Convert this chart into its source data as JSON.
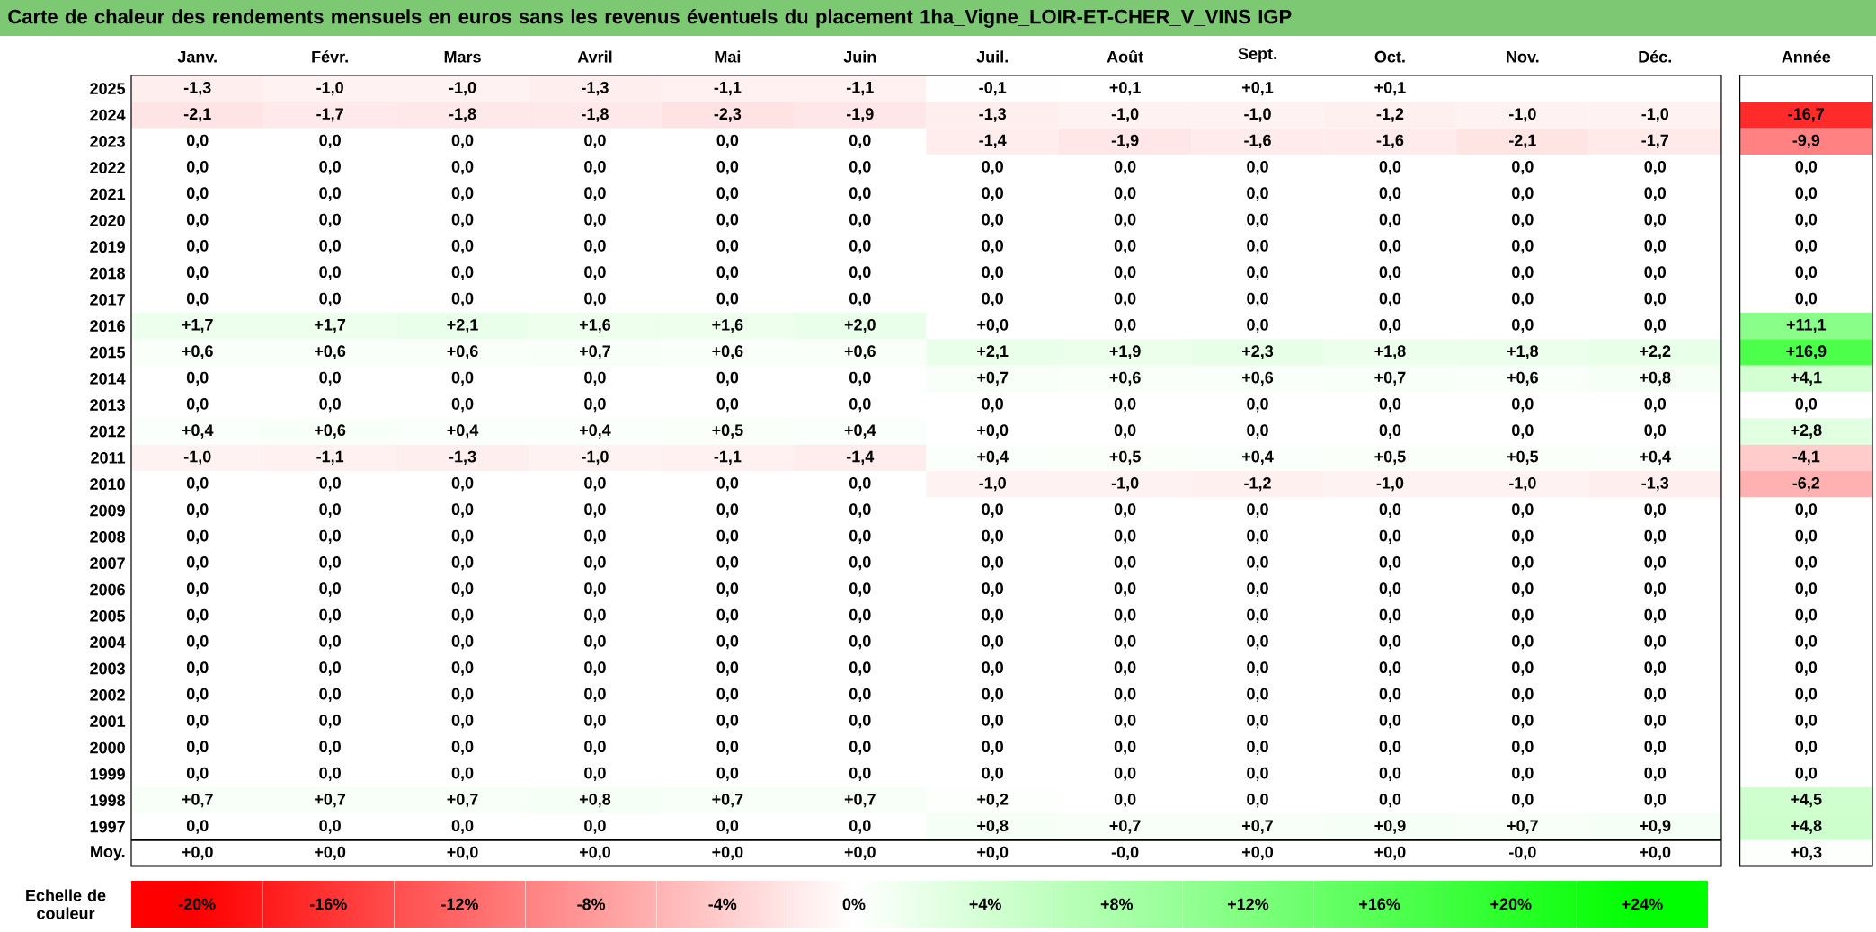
{
  "chart_data": [
    {
      "type": "heatmap",
      "title": "Carte de chaleur des rendements mensuels en euros sans les revenus éventuels du placement 1ha_Vigne_LOIR-ET-CHER_V_VINS IGP",
      "categories": [
        "Janv.",
        "Févr.",
        "Mars",
        "Avril",
        "Mai",
        "Juin",
        "Juil.",
        "Août",
        "Sept.",
        "Oct.",
        "Nov.",
        "Déc.",
        "Année"
      ],
      "y_categories": [
        "2025",
        "2024",
        "2023",
        "2022",
        "2021",
        "2020",
        "2019",
        "2018",
        "2017",
        "2016",
        "2015",
        "2014",
        "2013",
        "2012",
        "2011",
        "2010",
        "2009",
        "2008",
        "2007",
        "2006",
        "2005",
        "2004",
        "2003",
        "2002",
        "2001",
        "2000",
        "1999",
        "1998",
        "1997",
        "Moy."
      ],
      "cells": [
        [
          -1.3,
          -1.0,
          -1.0,
          -1.3,
          -1.1,
          -1.1,
          -0.1,
          0.1,
          0.1,
          0.1,
          null,
          null,
          null
        ],
        [
          -2.1,
          -1.7,
          -1.8,
          -1.8,
          -2.3,
          -1.9,
          -1.3,
          -1.0,
          -1.0,
          -1.2,
          -1.0,
          -1.0,
          -16.7
        ],
        [
          0,
          0,
          0,
          0,
          0,
          0,
          -1.4,
          -1.9,
          -1.6,
          -1.6,
          -2.1,
          -1.7,
          -9.9
        ],
        [
          0,
          0,
          0,
          0,
          0,
          0,
          0,
          0,
          0,
          0,
          0,
          0,
          0
        ],
        [
          0,
          0,
          0,
          0,
          0,
          0,
          0,
          0,
          0,
          0,
          0,
          0,
          0
        ],
        [
          0,
          0,
          0,
          0,
          0,
          0,
          0,
          0,
          0,
          0,
          0,
          0,
          0
        ],
        [
          0,
          0,
          0,
          0,
          0,
          0,
          0,
          0,
          0,
          0,
          0,
          0,
          0
        ],
        [
          0,
          0,
          0,
          0,
          0,
          0,
          0,
          0,
          0,
          0,
          0,
          0,
          0
        ],
        [
          0,
          0,
          0,
          0,
          0,
          0,
          0,
          0,
          0,
          0,
          0,
          0,
          0
        ],
        [
          1.7,
          1.7,
          2.1,
          1.6,
          1.6,
          2.0,
          0,
          0,
          0,
          0,
          0,
          0,
          11.1
        ],
        [
          0.6,
          0.6,
          0.6,
          0.7,
          0.6,
          0.6,
          2.1,
          1.9,
          2.3,
          1.8,
          1.8,
          2.2,
          16.9
        ],
        [
          0,
          0,
          0,
          0,
          0,
          0,
          0.7,
          0.6,
          0.6,
          0.7,
          0.6,
          0.8,
          4.1
        ],
        [
          0,
          0,
          0,
          0,
          0,
          0,
          0,
          0,
          0,
          0,
          0,
          0,
          0
        ],
        [
          0.4,
          0.6,
          0.4,
          0.4,
          0.5,
          0.4,
          0,
          0,
          0,
          0,
          0,
          0,
          2.8
        ],
        [
          -1.0,
          -1.1,
          -1.3,
          -1.0,
          -1.1,
          -1.4,
          0.4,
          0.5,
          0.4,
          0.5,
          0.5,
          0.4,
          -4.1
        ],
        [
          0,
          0,
          0,
          0,
          0,
          0,
          -1.0,
          -1.0,
          -1.2,
          -1.0,
          -1.0,
          -1.3,
          -6.2
        ],
        [
          0,
          0,
          0,
          0,
          0,
          0,
          0,
          0,
          0,
          0,
          0,
          0,
          0
        ],
        [
          0,
          0,
          0,
          0,
          0,
          0,
          0,
          0,
          0,
          0,
          0,
          0,
          0
        ],
        [
          0,
          0,
          0,
          0,
          0,
          0,
          0,
          0,
          0,
          0,
          0,
          0,
          0
        ],
        [
          0,
          0,
          0,
          0,
          0,
          0,
          0,
          0,
          0,
          0,
          0,
          0,
          0
        ],
        [
          0,
          0,
          0,
          0,
          0,
          0,
          0,
          0,
          0,
          0,
          0,
          0,
          0
        ],
        [
          0,
          0,
          0,
          0,
          0,
          0,
          0,
          0,
          0,
          0,
          0,
          0,
          0
        ],
        [
          0,
          0,
          0,
          0,
          0,
          0,
          0,
          0,
          0,
          0,
          0,
          0,
          0
        ],
        [
          0,
          0,
          0,
          0,
          0,
          0,
          0,
          0,
          0,
          0,
          0,
          0,
          0
        ],
        [
          0,
          0,
          0,
          0,
          0,
          0,
          0,
          0,
          0,
          0,
          0,
          0,
          0
        ],
        [
          0,
          0,
          0,
          0,
          0,
          0,
          0,
          0,
          0,
          0,
          0,
          0,
          0
        ],
        [
          0,
          0,
          0,
          0,
          0,
          0,
          0,
          0,
          0,
          0,
          0,
          0,
          0
        ],
        [
          0.7,
          0.7,
          0.7,
          0.8,
          0.7,
          0.7,
          0.2,
          0,
          0,
          0,
          0,
          0,
          4.5
        ],
        [
          0,
          0,
          0,
          0,
          0,
          0,
          0.8,
          0.7,
          0.7,
          0.9,
          0.7,
          0.9,
          4.8
        ],
        [
          0,
          0,
          0,
          0,
          0,
          0,
          0,
          0,
          0,
          0,
          0,
          0,
          0.3
        ]
      ],
      "cell_labels": [
        [
          "-1,3",
          "-1,0",
          "-1,0",
          "-1,3",
          "-1,1",
          "-1,1",
          "-0,1",
          "+0,1",
          "+0,1",
          "+0,1",
          null,
          null,
          null
        ],
        [
          "-2,1",
          "-1,7",
          "-1,8",
          "-1,8",
          "-2,3",
          "-1,9",
          "-1,3",
          "-1,0",
          "-1,0",
          "-1,2",
          "-1,0",
          "-1,0",
          "-16,7"
        ],
        [
          "0,0",
          "0,0",
          "0,0",
          "0,0",
          "0,0",
          "0,0",
          "-1,4",
          "-1,9",
          "-1,6",
          "-1,6",
          "-2,1",
          "-1,7",
          "-9,9"
        ],
        [
          "0,0",
          "0,0",
          "0,0",
          "0,0",
          "0,0",
          "0,0",
          "0,0",
          "0,0",
          "0,0",
          "0,0",
          "0,0",
          "0,0",
          "0,0"
        ],
        [
          "0,0",
          "0,0",
          "0,0",
          "0,0",
          "0,0",
          "0,0",
          "0,0",
          "0,0",
          "0,0",
          "0,0",
          "0,0",
          "0,0",
          "0,0"
        ],
        [
          "0,0",
          "0,0",
          "0,0",
          "0,0",
          "0,0",
          "0,0",
          "0,0",
          "0,0",
          "0,0",
          "0,0",
          "0,0",
          "0,0",
          "0,0"
        ],
        [
          "0,0",
          "0,0",
          "0,0",
          "0,0",
          "0,0",
          "0,0",
          "0,0",
          "0,0",
          "0,0",
          "0,0",
          "0,0",
          "0,0",
          "0,0"
        ],
        [
          "0,0",
          "0,0",
          "0,0",
          "0,0",
          "0,0",
          "0,0",
          "0,0",
          "0,0",
          "0,0",
          "0,0",
          "0,0",
          "0,0",
          "0,0"
        ],
        [
          "0,0",
          "0,0",
          "0,0",
          "0,0",
          "0,0",
          "0,0",
          "0,0",
          "0,0",
          "0,0",
          "0,0",
          "0,0",
          "0,0",
          "0,0"
        ],
        [
          "+1,7",
          "+1,7",
          "+2,1",
          "+1,6",
          "+1,6",
          "+2,0",
          "+0,0",
          "0,0",
          "0,0",
          "0,0",
          "0,0",
          "0,0",
          "+11,1"
        ],
        [
          "+0,6",
          "+0,6",
          "+0,6",
          "+0,7",
          "+0,6",
          "+0,6",
          "+2,1",
          "+1,9",
          "+2,3",
          "+1,8",
          "+1,8",
          "+2,2",
          "+16,9"
        ],
        [
          "0,0",
          "0,0",
          "0,0",
          "0,0",
          "0,0",
          "0,0",
          "+0,7",
          "+0,6",
          "+0,6",
          "+0,7",
          "+0,6",
          "+0,8",
          "+4,1"
        ],
        [
          "0,0",
          "0,0",
          "0,0",
          "0,0",
          "0,0",
          "0,0",
          "0,0",
          "0,0",
          "0,0",
          "0,0",
          "0,0",
          "0,0",
          "0,0"
        ],
        [
          "+0,4",
          "+0,6",
          "+0,4",
          "+0,4",
          "+0,5",
          "+0,4",
          "+0,0",
          "0,0",
          "0,0",
          "0,0",
          "0,0",
          "0,0",
          "+2,8"
        ],
        [
          "-1,0",
          "-1,1",
          "-1,3",
          "-1,0",
          "-1,1",
          "-1,4",
          "+0,4",
          "+0,5",
          "+0,4",
          "+0,5",
          "+0,5",
          "+0,4",
          "-4,1"
        ],
        [
          "0,0",
          "0,0",
          "0,0",
          "0,0",
          "0,0",
          "0,0",
          "-1,0",
          "-1,0",
          "-1,2",
          "-1,0",
          "-1,0",
          "-1,3",
          "-6,2"
        ],
        [
          "0,0",
          "0,0",
          "0,0",
          "0,0",
          "0,0",
          "0,0",
          "0,0",
          "0,0",
          "0,0",
          "0,0",
          "0,0",
          "0,0",
          "0,0"
        ],
        [
          "0,0",
          "0,0",
          "0,0",
          "0,0",
          "0,0",
          "0,0",
          "0,0",
          "0,0",
          "0,0",
          "0,0",
          "0,0",
          "0,0",
          "0,0"
        ],
        [
          "0,0",
          "0,0",
          "0,0",
          "0,0",
          "0,0",
          "0,0",
          "0,0",
          "0,0",
          "0,0",
          "0,0",
          "0,0",
          "0,0",
          "0,0"
        ],
        [
          "0,0",
          "0,0",
          "0,0",
          "0,0",
          "0,0",
          "0,0",
          "0,0",
          "0,0",
          "0,0",
          "0,0",
          "0,0",
          "0,0",
          "0,0"
        ],
        [
          "0,0",
          "0,0",
          "0,0",
          "0,0",
          "0,0",
          "0,0",
          "0,0",
          "0,0",
          "0,0",
          "0,0",
          "0,0",
          "0,0",
          "0,0"
        ],
        [
          "0,0",
          "0,0",
          "0,0",
          "0,0",
          "0,0",
          "0,0",
          "0,0",
          "0,0",
          "0,0",
          "0,0",
          "0,0",
          "0,0",
          "0,0"
        ],
        [
          "0,0",
          "0,0",
          "0,0",
          "0,0",
          "0,0",
          "0,0",
          "0,0",
          "0,0",
          "0,0",
          "0,0",
          "0,0",
          "0,0",
          "0,0"
        ],
        [
          "0,0",
          "0,0",
          "0,0",
          "0,0",
          "0,0",
          "0,0",
          "0,0",
          "0,0",
          "0,0",
          "0,0",
          "0,0",
          "0,0",
          "0,0"
        ],
        [
          "0,0",
          "0,0",
          "0,0",
          "0,0",
          "0,0",
          "0,0",
          "0,0",
          "0,0",
          "0,0",
          "0,0",
          "0,0",
          "0,0",
          "0,0"
        ],
        [
          "0,0",
          "0,0",
          "0,0",
          "0,0",
          "0,0",
          "0,0",
          "0,0",
          "0,0",
          "0,0",
          "0,0",
          "0,0",
          "0,0",
          "0,0"
        ],
        [
          "0,0",
          "0,0",
          "0,0",
          "0,0",
          "0,0",
          "0,0",
          "0,0",
          "0,0",
          "0,0",
          "0,0",
          "0,0",
          "0,0",
          "0,0"
        ],
        [
          "+0,7",
          "+0,7",
          "+0,7",
          "+0,8",
          "+0,7",
          "+0,7",
          "+0,2",
          "0,0",
          "0,0",
          "0,0",
          "0,0",
          "0,0",
          "+4,5"
        ],
        [
          "0,0",
          "0,0",
          "0,0",
          "0,0",
          "0,0",
          "0,0",
          "+0,8",
          "+0,7",
          "+0,7",
          "+0,9",
          "+0,7",
          "+0,9",
          "+4,8"
        ],
        [
          "+0,0",
          "+0,0",
          "+0,0",
          "+0,0",
          "+0,0",
          "+0,0",
          "+0,0",
          "-0,0",
          "+0,0",
          "+0,0",
          "-0,0",
          "+0,0",
          "+0,3"
        ]
      ],
      "clim": [
        -20,
        24
      ],
      "clabel": "Echelle de couleur",
      "cticks": [
        {
          "value": -20,
          "label": "-20%"
        },
        {
          "value": -16,
          "label": "-16%"
        },
        {
          "value": -12,
          "label": "-12%"
        },
        {
          "value": -8,
          "label": "-8%"
        },
        {
          "value": -4,
          "label": "-4%"
        },
        {
          "value": 0,
          "label": "0%"
        },
        {
          "value": 4,
          "label": "+4%"
        },
        {
          "value": 8,
          "label": "+8%"
        },
        {
          "value": 12,
          "label": "+12%"
        },
        {
          "value": 16,
          "label": "+16%"
        },
        {
          "value": 20,
          "label": "+20%"
        },
        {
          "value": 24,
          "label": "+24%"
        }
      ]
    }
  ]
}
